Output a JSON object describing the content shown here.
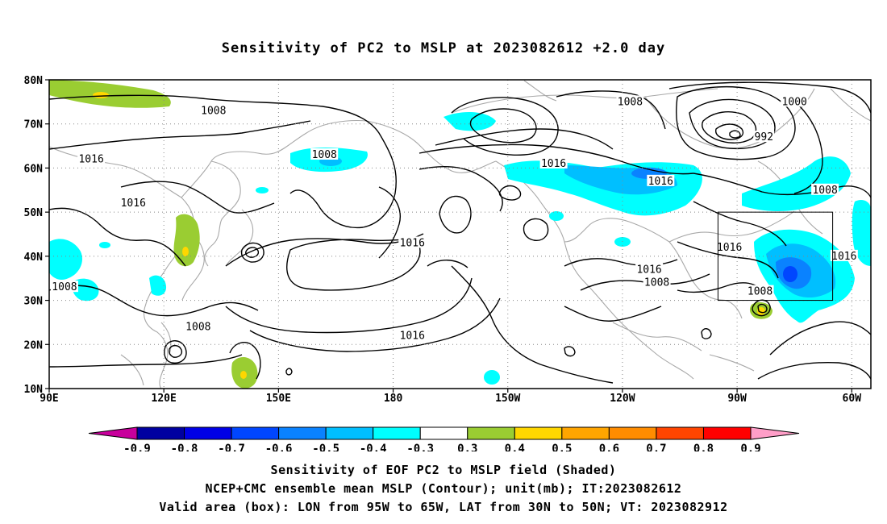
{
  "title": "Sensitivity of PC2 to MSLP at 2023082612 +2.0 day",
  "map": {
    "lon_range": [
      90,
      305
    ],
    "lat_range": [
      10,
      80
    ],
    "lat_ticks": [
      {
        "value": 80,
        "label": "80N"
      },
      {
        "value": 70,
        "label": "70N"
      },
      {
        "value": 60,
        "label": "60N"
      },
      {
        "value": 50,
        "label": "50N"
      },
      {
        "value": 40,
        "label": "40N"
      },
      {
        "value": 30,
        "label": "30N"
      },
      {
        "value": 20,
        "label": "20N"
      },
      {
        "value": 10,
        "label": "10N"
      }
    ],
    "lon_ticks": [
      {
        "value": 90,
        "label": "90E"
      },
      {
        "value": 120,
        "label": "120E"
      },
      {
        "value": 150,
        "label": "150E"
      },
      {
        "value": 180,
        "label": "180"
      },
      {
        "value": 210,
        "label": "150W"
      },
      {
        "value": 240,
        "label": "120W"
      },
      {
        "value": 270,
        "label": "90W"
      },
      {
        "value": 300,
        "label": "60W"
      }
    ],
    "grid": "dotted",
    "valid_box": {
      "lon": [
        265,
        295
      ],
      "lat": [
        30,
        50
      ]
    },
    "contour_labels": [
      {
        "text": "1008",
        "lon": 133,
        "lat": 73
      },
      {
        "text": "1016",
        "lon": 101,
        "lat": 62
      },
      {
        "text": "1016",
        "lon": 112,
        "lat": 52
      },
      {
        "text": "1008",
        "lon": 94,
        "lat": 33
      },
      {
        "text": "1008",
        "lon": 129,
        "lat": 24
      },
      {
        "text": "1008",
        "lon": 162,
        "lat": 63
      },
      {
        "text": "1016",
        "lon": 185,
        "lat": 43
      },
      {
        "text": "1016",
        "lon": 185,
        "lat": 22
      },
      {
        "text": "1016",
        "lon": 222,
        "lat": 61
      },
      {
        "text": "1008",
        "lon": 242,
        "lat": 75
      },
      {
        "text": "1016",
        "lon": 250,
        "lat": 57
      },
      {
        "text": "1016",
        "lon": 268,
        "lat": 42
      },
      {
        "text": "1016",
        "lon": 247,
        "lat": 37
      },
      {
        "text": "1008",
        "lon": 249,
        "lat": 34
      },
      {
        "text": "1008",
        "lon": 276,
        "lat": 32
      },
      {
        "text": "1000",
        "lon": 285,
        "lat": 75
      },
      {
        "text": "992",
        "lon": 277,
        "lat": 67
      },
      {
        "text": "1008",
        "lon": 293,
        "lat": 55
      },
      {
        "text": "1016",
        "lon": 298,
        "lat": 40
      }
    ]
  },
  "colorbar": {
    "labels": [
      "-0.9",
      "-0.8",
      "-0.7",
      "-0.6",
      "-0.5",
      "-0.4",
      "-0.3",
      "0.3",
      "0.4",
      "0.5",
      "0.6",
      "0.7",
      "0.8",
      "0.9"
    ],
    "colors": [
      "#0000a0",
      "#0000e6",
      "#0046ff",
      "#0a82ff",
      "#00bfff",
      "#00ffff",
      "#ffffff",
      "#9acd32",
      "#ffd700",
      "#ffa500",
      "#ff8c00",
      "#ff4500",
      "#ff0000"
    ],
    "low_end_color": "#c8009c",
    "high_end_color": "#ff9ec8"
  },
  "captions": {
    "line1": "Sensitivity of EOF PC2 to MSLP field (Shaded)",
    "line2": "NCEP+CMC ensemble mean MSLP (Contour); unit(mb); IT:2023082612",
    "line3": "Valid area (box): LON from 95W to 65W, LAT from 30N to 50N; VT: 2023082912"
  }
}
